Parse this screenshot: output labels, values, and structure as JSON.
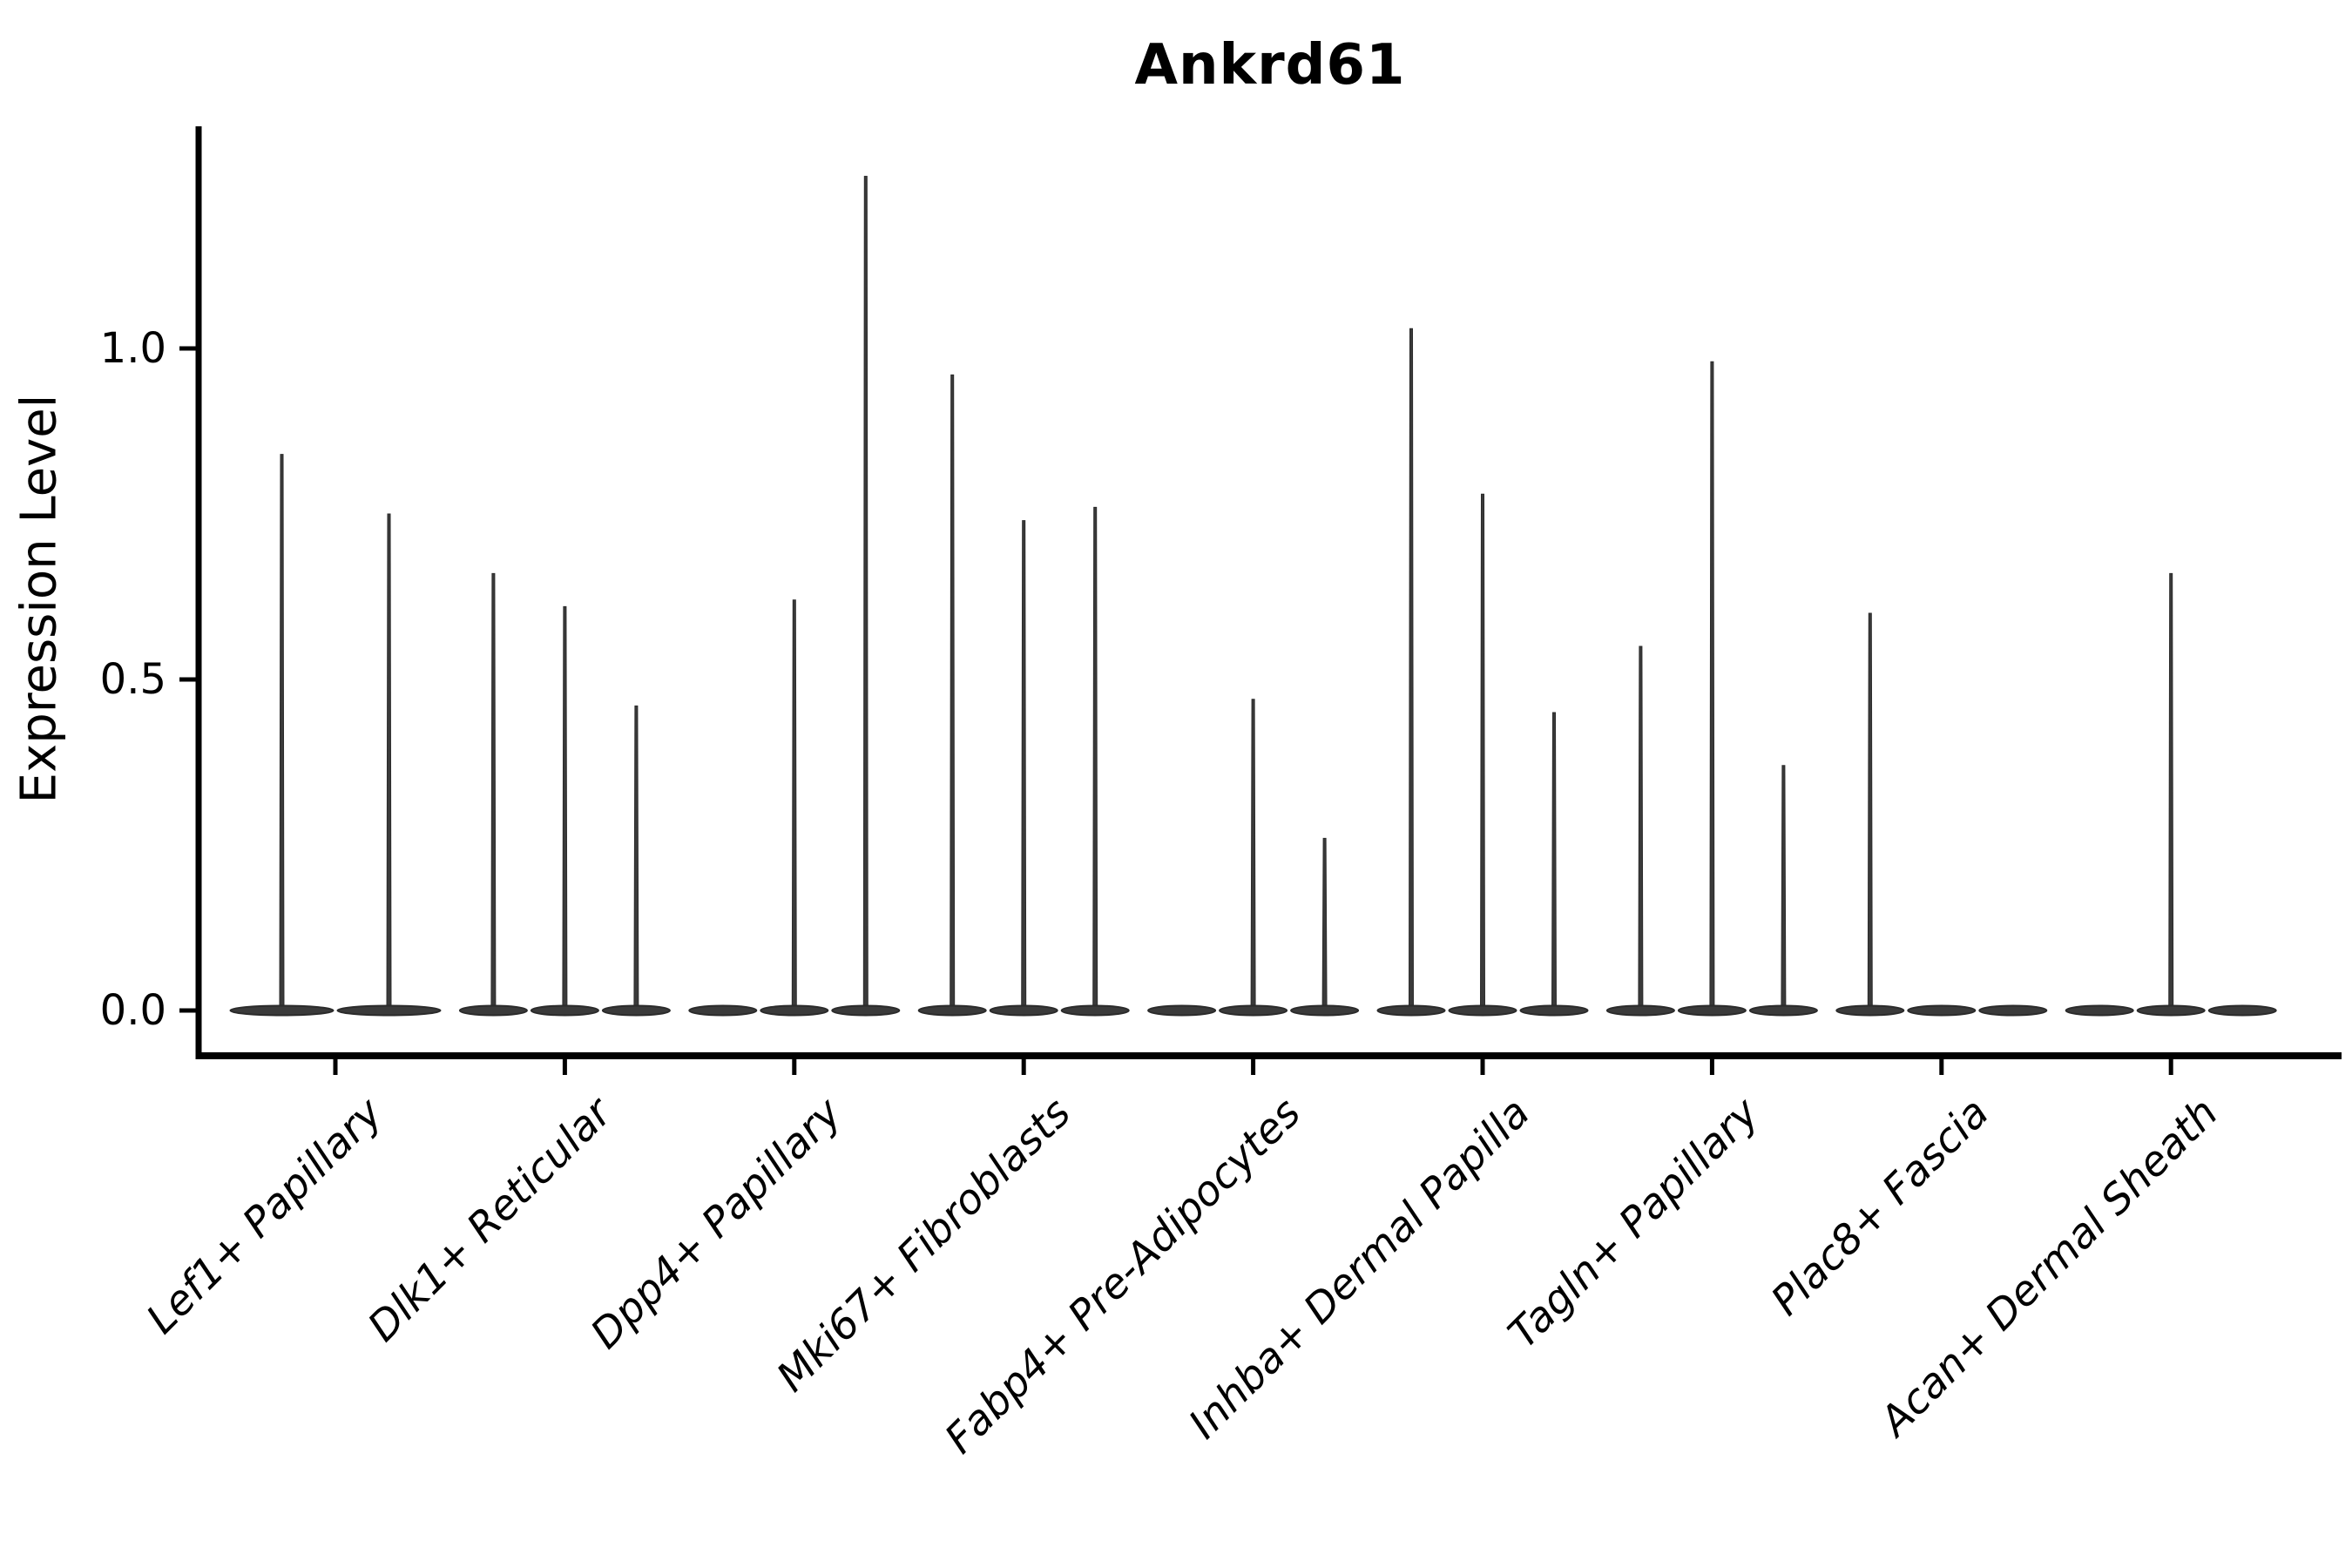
{
  "title": "Ankrd61",
  "y_axis": {
    "label": "Expression Level",
    "tick_labels": [
      "0.0",
      "0.5",
      "1.0"
    ],
    "tick_values": [
      0.0,
      0.5,
      1.0
    ]
  },
  "x_axis": {
    "categories": [
      "Lef1+ Papillary",
      "Dlk1+ Reticular",
      "Dpp4+ Papillary",
      "Mki67+ Fibroblasts",
      "Fabp4+ Pre-Adipocytes",
      "Inhba+ Dermal Papilla",
      "Tagln+ Papillary",
      "Plac8+ Fascia",
      "Acan+ Dermal Sheath"
    ]
  },
  "colors": {
    "violin": "#3a3a3a",
    "violin_edge": "#2b2b2b",
    "axis": "#000000",
    "text": "#000000"
  },
  "chart_data": {
    "type": "violin",
    "title": "Ankrd61",
    "xlabel": "",
    "ylabel": "Expression Level",
    "ylim": [
      -0.07,
      1.34
    ],
    "yticks": [
      0.0,
      0.5,
      1.0
    ],
    "grid": false,
    "legend": "none",
    "description": "Violin plot of Ankrd61 expression; each cell-type group contains 2-3 sub-violins whose density is concentrated at 0 (flat wide body) with a thin vertical tail reaching the listed maximum expression value; 0 means a flat violin with no tail.",
    "categories": [
      "Lef1+ Papillary",
      "Dlk1+ Reticular",
      "Dpp4+ Papillary",
      "Mki67+ Fibroblasts",
      "Fabp4+ Pre-Adipocytes",
      "Inhba+ Dermal Papilla",
      "Tagln+ Papillary",
      "Plac8+ Fascia",
      "Acan+ Dermal Sheath"
    ],
    "groups": [
      {
        "category": "Lef1+ Papillary",
        "violin_max_expression": [
          0.84,
          0.75
        ]
      },
      {
        "category": "Dlk1+ Reticular",
        "violin_max_expression": [
          0.66,
          0.61,
          0.46
        ]
      },
      {
        "category": "Dpp4+ Papillary",
        "violin_max_expression": [
          0,
          0.62,
          1.26
        ]
      },
      {
        "category": "Mki67+ Fibroblasts",
        "violin_max_expression": [
          0.96,
          0.74,
          0.76
        ]
      },
      {
        "category": "Fabp4+ Pre-Adipocytes",
        "violin_max_expression": [
          0,
          0.47,
          0.26
        ]
      },
      {
        "category": "Inhba+ Dermal Papilla",
        "violin_max_expression": [
          1.03,
          0.78,
          0.45
        ]
      },
      {
        "category": "Tagln+ Papillary",
        "violin_max_expression": [
          0.55,
          0.98,
          0.37
        ]
      },
      {
        "category": "Plac8+ Fascia",
        "violin_max_expression": [
          0.6,
          0,
          0
        ]
      },
      {
        "category": "Acan+ Dermal Sheath",
        "violin_max_expression": [
          0,
          0.66,
          0
        ]
      }
    ]
  }
}
